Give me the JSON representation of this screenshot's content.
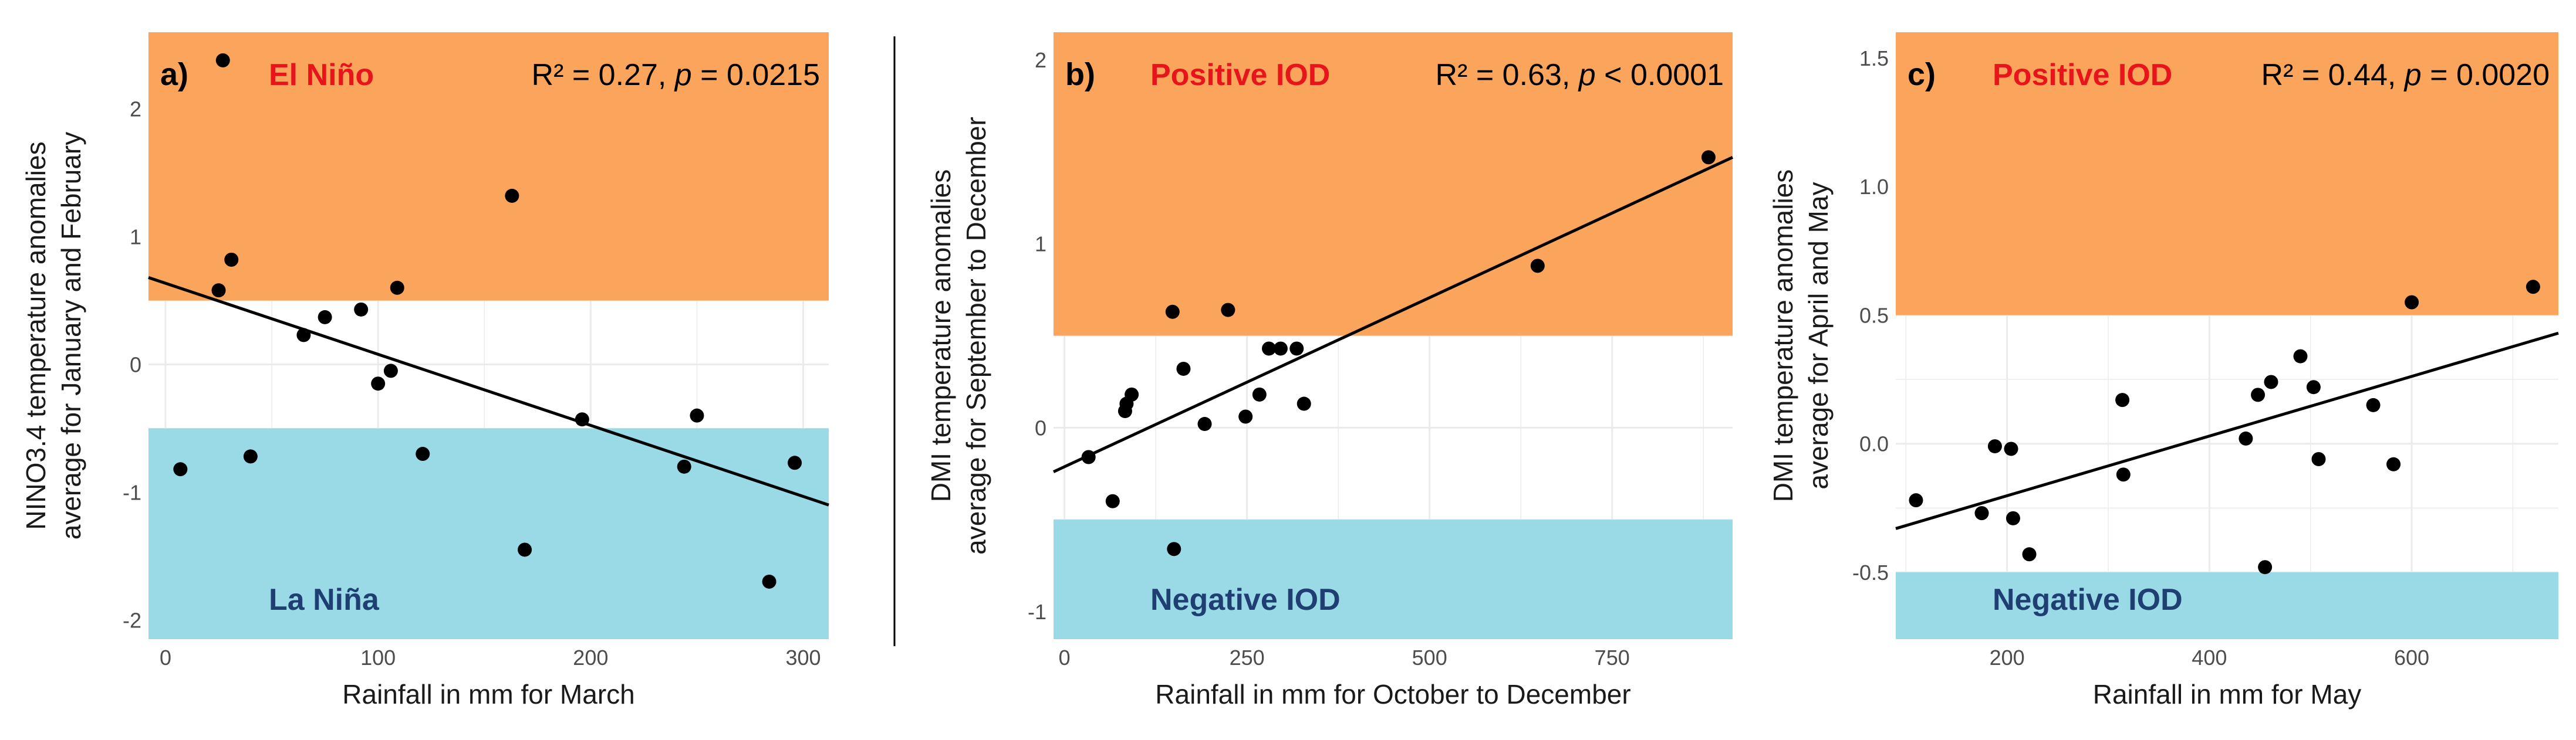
{
  "colors": {
    "upper_zone": "#fba45c",
    "lower_zone": "#99dae6",
    "grid": "#ebebeb",
    "point": "#000000",
    "fit_line": "#000000",
    "upper_label": "#e8141b",
    "lower_label": "#1f3f73"
  },
  "chart_data": [
    {
      "type": "scatter",
      "panel_label": "a)",
      "stats": {
        "r2": "R² = 0.27, ",
        "p_symbol": "p",
        "p_text": " = 0.0215"
      },
      "upper_zone_label": "El Niño",
      "lower_zone_label": "La Niña",
      "xlabel": "Rainfall in mm for March",
      "ylabel_line1": "NINO3.4 temperature anomalies",
      "ylabel_line2": "average for January and February",
      "xlim": [
        -8,
        312
      ],
      "ylim": [
        -2.15,
        2.6
      ],
      "x_ticks": [
        0,
        100,
        200,
        300
      ],
      "x_tick_labels": [
        "0",
        "100",
        "200",
        "300"
      ],
      "y_ticks": [
        -2,
        -1,
        0,
        1,
        2
      ],
      "y_tick_labels": [
        "-2",
        "-1",
        "0",
        "1",
        "2"
      ],
      "upper_band": [
        0.5,
        2.6
      ],
      "lower_band": [
        -2.15,
        -0.5
      ],
      "points": [
        [
          7,
          -0.82
        ],
        [
          25,
          0.58
        ],
        [
          27,
          2.38
        ],
        [
          31,
          0.82
        ],
        [
          40,
          -0.72
        ],
        [
          65,
          0.23
        ],
        [
          75,
          0.37
        ],
        [
          92,
          0.43
        ],
        [
          100,
          -0.15
        ],
        [
          106,
          -0.05
        ],
        [
          109,
          0.6
        ],
        [
          121,
          -0.7
        ],
        [
          163,
          1.32
        ],
        [
          169,
          -1.45
        ],
        [
          196,
          -0.43
        ],
        [
          244,
          -0.8
        ],
        [
          250,
          -0.4
        ],
        [
          284,
          -1.7
        ],
        [
          296,
          -0.77
        ]
      ],
      "fit": {
        "x": [
          -8,
          312
        ],
        "y": [
          0.68,
          -1.1
        ]
      }
    },
    {
      "type": "scatter",
      "panel_label": "b)",
      "stats": {
        "r2": "R² = 0.63, ",
        "p_symbol": "p",
        "p_text": " < 0.0001"
      },
      "upper_zone_label": "Positive IOD",
      "lower_zone_label": "Negative IOD",
      "xlabel": "Rainfall in mm for October to December",
      "ylabel_line1": "DMI temperature anomalies",
      "ylabel_line2": "average for September to December",
      "xlim": [
        -15,
        915
      ],
      "ylim": [
        -1.15,
        2.15
      ],
      "x_ticks": [
        0,
        250,
        500,
        750
      ],
      "x_tick_labels": [
        "0",
        "250",
        "500",
        "750"
      ],
      "y_ticks": [
        -1,
        0,
        1,
        2
      ],
      "y_tick_labels": [
        "-1",
        "0",
        "1",
        "2"
      ],
      "upper_band": [
        0.5,
        2.15
      ],
      "lower_band": [
        -1.15,
        -0.5
      ],
      "points": [
        [
          33,
          -0.16
        ],
        [
          66,
          -0.4
        ],
        [
          83,
          0.09
        ],
        [
          85,
          0.13
        ],
        [
          92,
          0.18
        ],
        [
          148,
          0.63
        ],
        [
          150,
          -0.66
        ],
        [
          163,
          0.32
        ],
        [
          192,
          0.02
        ],
        [
          224,
          0.64
        ],
        [
          248,
          0.06
        ],
        [
          267,
          0.18
        ],
        [
          280,
          0.43
        ],
        [
          296,
          0.43
        ],
        [
          318,
          0.43
        ],
        [
          328,
          0.13
        ],
        [
          648,
          0.88
        ],
        [
          882,
          1.47
        ]
      ],
      "fit": {
        "x": [
          -15,
          915
        ],
        "y": [
          -0.24,
          1.47
        ]
      }
    },
    {
      "type": "scatter",
      "panel_label": "c)",
      "stats": {
        "r2": "R² = 0.44, ",
        "p_symbol": "p",
        "p_text": " = 0.0020"
      },
      "upper_zone_label": "Positive IOD",
      "lower_zone_label": "Negative IOD",
      "xlabel": "Rainfall in mm for May",
      "ylabel_line1": "DMI temperature anomalies",
      "ylabel_line2": "average for April and May",
      "xlim": [
        90,
        745
      ],
      "ylim": [
        -0.76,
        1.6
      ],
      "x_ticks": [
        200,
        400,
        600
      ],
      "x_tick_labels": [
        "200",
        "400",
        "600"
      ],
      "y_ticks": [
        -0.5,
        0.0,
        0.5,
        1.0,
        1.5
      ],
      "y_tick_labels": [
        "-0.5",
        "0.0",
        "0.5",
        "1.0",
        "1.5"
      ],
      "upper_band": [
        0.5,
        1.6
      ],
      "lower_band": [
        -0.76,
        -0.5
      ],
      "points": [
        [
          110,
          -0.22
        ],
        [
          175,
          -0.27
        ],
        [
          188,
          -0.01
        ],
        [
          204,
          -0.02
        ],
        [
          206,
          -0.29
        ],
        [
          222,
          -0.43
        ],
        [
          314,
          0.17
        ],
        [
          315,
          -0.12
        ],
        [
          436,
          0.02
        ],
        [
          448,
          0.19
        ],
        [
          455,
          -0.48
        ],
        [
          461,
          0.24
        ],
        [
          490,
          0.34
        ],
        [
          503,
          0.22
        ],
        [
          508,
          -0.06
        ],
        [
          562,
          0.15
        ],
        [
          582,
          -0.08
        ],
        [
          600,
          0.55
        ],
        [
          720,
          0.61
        ]
      ],
      "fit": {
        "x": [
          90,
          745
        ],
        "y": [
          -0.33,
          0.43
        ]
      }
    }
  ]
}
